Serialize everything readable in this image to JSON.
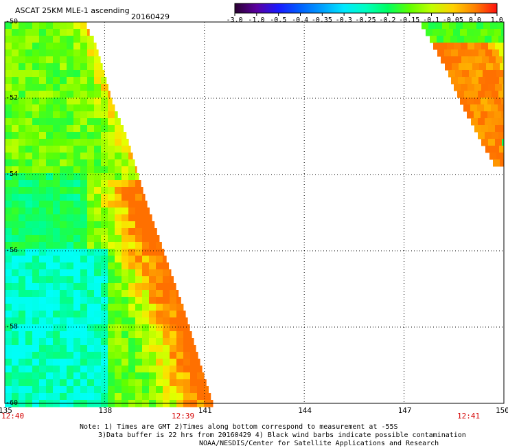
{
  "title": "ASCAT 25KM MLE-1 ascending",
  "date": "20160429",
  "colorbar": {
    "labels": [
      "-3.0",
      "-1.0",
      "-0.5",
      "-0.4",
      "-0.35",
      "-0.3",
      "-0.25",
      "-0.2",
      "-0.15",
      "-0.1",
      "-0.05",
      "0.0",
      "1.0"
    ],
    "colors": [
      "#2a0030",
      "#5a00a0",
      "#1a1aff",
      "#0060ff",
      "#00a0ff",
      "#00e8ff",
      "#00ffc0",
      "#00ff60",
      "#60ff00",
      "#c0ff00",
      "#ffd000",
      "#ff8000",
      "#ff1010"
    ]
  },
  "lon_labels": [
    "135",
    "138",
    "141",
    "144",
    "147",
    "150"
  ],
  "lat_labels": [
    "-50",
    "-52",
    "-54",
    "-56",
    "-58",
    "-60"
  ],
  "time_labels": [
    "12:40",
    "12:39",
    "12:41"
  ],
  "notes": [
    "Note: 1) Times are GMT 2)Times along bottom correspond to measurement at -55S",
    "3)Data buffer is 22 hrs from 20160429 4) Black wind barbs indicate possible contamination",
    "NOAA/NESDIS/Center for Satellite Applications and Research"
  ],
  "map_data": {
    "projection": "lat-lon",
    "lon_range": [
      135,
      150
    ],
    "lat_range": [
      -60,
      -50
    ],
    "grid": true,
    "field": "MLE-1",
    "swaths": [
      {
        "name": "west swath",
        "value_range": [
          -0.3,
          -0.05
        ]
      },
      {
        "name": "east swath",
        "value_range": [
          -0.25,
          -0.05
        ]
      }
    ]
  }
}
